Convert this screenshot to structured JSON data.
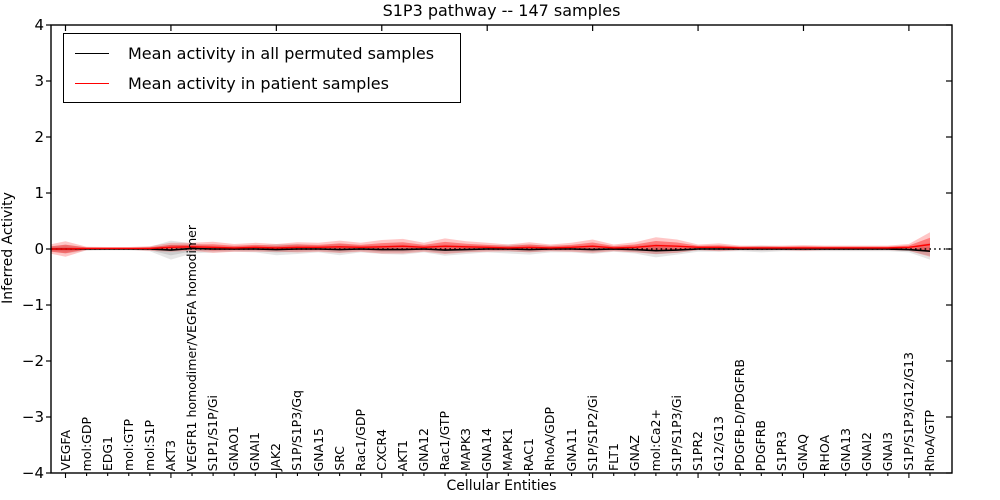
{
  "figure": {
    "title": "S1P3 pathway -- 147 samples",
    "xlabel": "Cellular Entities",
    "ylabel": "Inferred Activity"
  },
  "chart_data": {
    "type": "line",
    "title": "S1P3 pathway -- 147 samples",
    "xlabel": "Cellular Entities",
    "ylabel": "Inferred Activity",
    "ylim": [
      -4,
      4
    ],
    "yticks": [
      -4,
      -3,
      -2,
      -1,
      0,
      1,
      2,
      3,
      4
    ],
    "grid": false,
    "legend_position": "upper left",
    "zero_reference_line": 0,
    "categories": [
      "VEGFA",
      "mol:GDP",
      "EDG1",
      "mol:GTP",
      "mol:S1P",
      "AKT3",
      "VEGFR1 homodimer/VEGFA homodimer",
      "S1P1/S1P/Gi",
      "GNAO1",
      "GNAI1",
      "JAK2",
      "S1P/S1P3/Gq",
      "GNA15",
      "SRC",
      "Rac1/GDP",
      "CXCR4",
      "AKT1",
      "GNA12",
      "Rac1/GTP",
      "MAPK3",
      "GNA14",
      "MAPK1",
      "RAC1",
      "RhoA/GDP",
      "GNA11",
      "S1P/S1P2/Gi",
      "FLT1",
      "GNAZ",
      "mol:Ca2+",
      "S1P/S1P3/Gi",
      "S1PR2",
      "G12/G13",
      "PDGFB-D/PDGFRB",
      "PDGFRB",
      "S1PR3",
      "GNAQ",
      "RHOA",
      "GNA13",
      "GNAI2",
      "GNAI3",
      "S1P/S1P3/G12/G13",
      "RhoA/GTP"
    ],
    "series": [
      {
        "name": "Mean activity in all permuted samples",
        "color": "#000000",
        "band_color": "#000000",
        "band_opacity": 0.11,
        "values": [
          0,
          0,
          0,
          0,
          0,
          -0.02,
          0.01,
          0,
          0,
          0,
          -0.01,
          0,
          0,
          -0.01,
          0,
          -0.01,
          -0.01,
          0,
          -0.02,
          -0.01,
          0,
          0,
          -0.01,
          0,
          0,
          -0.01,
          0,
          -0.01,
          -0.03,
          -0.02,
          0,
          0,
          0,
          0,
          0,
          0,
          0,
          0,
          0,
          0,
          -0.01,
          -0.04
        ],
        "band_halfwidth": [
          0.08,
          0.03,
          0.025,
          0.025,
          0.04,
          0.17,
          0.09,
          0.06,
          0.05,
          0.06,
          0.1,
          0.09,
          0.06,
          0.1,
          0.06,
          0.08,
          0.09,
          0.06,
          0.1,
          0.08,
          0.06,
          0.08,
          0.09,
          0.06,
          0.06,
          0.08,
          0.05,
          0.07,
          0.12,
          0.08,
          0.05,
          0.05,
          0.04,
          0.06,
          0.04,
          0.04,
          0.04,
          0.04,
          0.04,
          0.04,
          0.05,
          0.15
        ]
      },
      {
        "name": "Mean activity in patient samples",
        "color": "#ff0000",
        "band_color": "#ff0000",
        "band_opacity": 0.3,
        "values": [
          0,
          0.01,
          0.01,
          0.01,
          0.01,
          0.03,
          0.04,
          0.03,
          0.02,
          0.03,
          0.02,
          0.03,
          0.03,
          0.04,
          0.03,
          0.04,
          0.05,
          0.03,
          0.05,
          0.04,
          0.03,
          0.02,
          0.03,
          0.02,
          0.03,
          0.05,
          0.02,
          0.03,
          0.06,
          0.05,
          0.03,
          0.03,
          0.02,
          0.02,
          0.02,
          0.02,
          0.02,
          0.02,
          0.02,
          0.02,
          0.03,
          0.08
        ],
        "band_halfwidth": [
          0.14,
          0.03,
          0.025,
          0.025,
          0.04,
          0.08,
          0.07,
          0.1,
          0.07,
          0.08,
          0.07,
          0.09,
          0.08,
          0.11,
          0.08,
          0.12,
          0.13,
          0.08,
          0.14,
          0.1,
          0.08,
          0.06,
          0.09,
          0.06,
          0.08,
          0.12,
          0.06,
          0.09,
          0.15,
          0.12,
          0.05,
          0.07,
          0.04,
          0.04,
          0.04,
          0.05,
          0.04,
          0.04,
          0.04,
          0.04,
          0.06,
          0.22
        ]
      }
    ]
  }
}
